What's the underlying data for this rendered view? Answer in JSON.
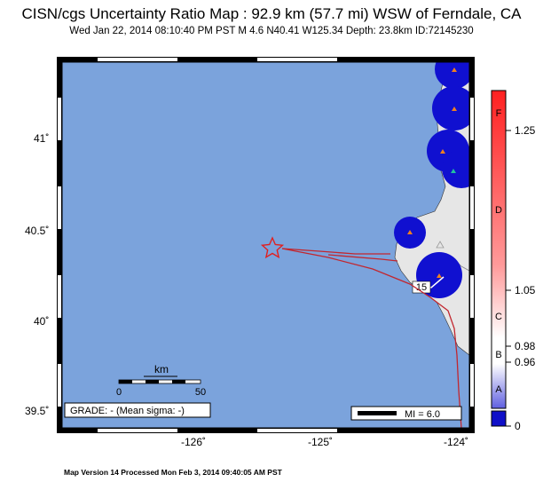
{
  "header": {
    "title": "CISN/cgs Uncertainty Ratio Map : 92.9 km (57.7 mi) WSW of Ferndale, CA",
    "subtitle": "Wed Jan 22, 2014 08:10:40 PM PST   M 4.6   N40.41 W125.34   Depth: 23.8km   ID:72145230"
  },
  "map": {
    "lat_labels": [
      "41˚",
      "40.5˚",
      "40˚",
      "39.5˚"
    ],
    "lon_labels": [
      "-126˚",
      "-125˚",
      "-124˚"
    ],
    "scale_unit": "km",
    "scale_ticks": [
      "0",
      "50"
    ],
    "grade_label": "GRADE: - (Mean sigma: -)",
    "mi_legend": "MI = 6.0",
    "highway_label": "15",
    "colors": {
      "ocean": "#7ba3dc",
      "land": "#e6e6e6",
      "circle": "#1010d0",
      "fault": "#c2262e",
      "epicenter": "#e02020",
      "station": "#f08020"
    }
  },
  "colorbar": {
    "tick_labels": [
      "1.25",
      "1.05",
      "0.98",
      "0.96",
      "0"
    ],
    "grade_letters": [
      "F",
      "D",
      "C",
      "B",
      "A"
    ],
    "colors": {
      "top": "#ff2020",
      "mid": "#ffffff",
      "bottom": "#1010c8"
    }
  },
  "footer": {
    "text": "Map Version 14 Processed Mon Feb  3, 2014 09:40:05 AM PST"
  }
}
